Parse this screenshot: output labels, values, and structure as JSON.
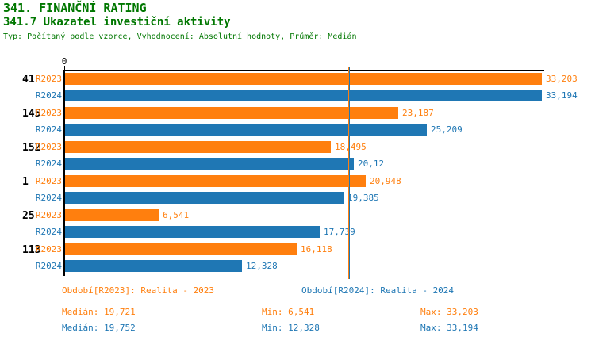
{
  "header": {
    "title": "341. FINANČNÍ RATING",
    "subtitle": "341.7 Ukazatel investiční aktivity",
    "meta": "Typ: Počítaný podle vzorce, Vyhodnocení: Absolutní hodnoty, Průměr: Medián"
  },
  "colors": {
    "r2023": "#ff7f0e",
    "r2024": "#1f77b4",
    "title_green": "#007700",
    "axis": "#000000"
  },
  "chart_data": {
    "type": "bar",
    "orientation": "horizontal",
    "title": "341.7 Ukazatel investiční aktivity",
    "origin_label": "0",
    "value_axis_min": 0,
    "value_axis_max": 33.37,
    "series_names": [
      "R2023",
      "R2024"
    ],
    "groups": [
      {
        "category": "41",
        "bars": [
          {
            "series": "R2023",
            "value": 33.203,
            "label": "33,203"
          },
          {
            "series": "R2024",
            "value": 33.194,
            "label": "33,194"
          }
        ]
      },
      {
        "category": "145",
        "bars": [
          {
            "series": "R2023",
            "value": 23.187,
            "label": "23,187"
          },
          {
            "series": "R2024",
            "value": 25.209,
            "label": "25,209"
          }
        ]
      },
      {
        "category": "152",
        "bars": [
          {
            "series": "R2023",
            "value": 18.495,
            "label": "18,495"
          },
          {
            "series": "R2024",
            "value": 20.12,
            "label": "20,12"
          }
        ]
      },
      {
        "category": "1",
        "bars": [
          {
            "series": "R2023",
            "value": 20.948,
            "label": "20,948"
          },
          {
            "series": "R2024",
            "value": 19.385,
            "label": "19,385"
          }
        ]
      },
      {
        "category": "25",
        "bars": [
          {
            "series": "R2023",
            "value": 6.541,
            "label": "6,541"
          },
          {
            "series": "R2024",
            "value": 17.739,
            "label": "17,739"
          }
        ]
      },
      {
        "category": "113",
        "bars": [
          {
            "series": "R2023",
            "value": 16.118,
            "label": "16,118"
          },
          {
            "series": "R2024",
            "value": 12.328,
            "label": "12,328"
          }
        ]
      }
    ],
    "median_lines": [
      {
        "series": "R2023",
        "value": 19.721
      },
      {
        "series": "R2024",
        "value": 19.752
      }
    ],
    "legend_position": "bottom"
  },
  "legend": [
    {
      "series": "R2023",
      "label": "Období[R2023]: Realita - 2023"
    },
    {
      "series": "R2024",
      "label": "Období[R2024]: Realita - 2024"
    }
  ],
  "stats": [
    {
      "series": "R2023",
      "median": "Medián: 19,721",
      "min": "Min: 6,541",
      "max": "Max: 33,203"
    },
    {
      "series": "R2024",
      "median": "Medián: 19,752",
      "min": "Min: 12,328",
      "max": "Max: 33,194"
    }
  ]
}
